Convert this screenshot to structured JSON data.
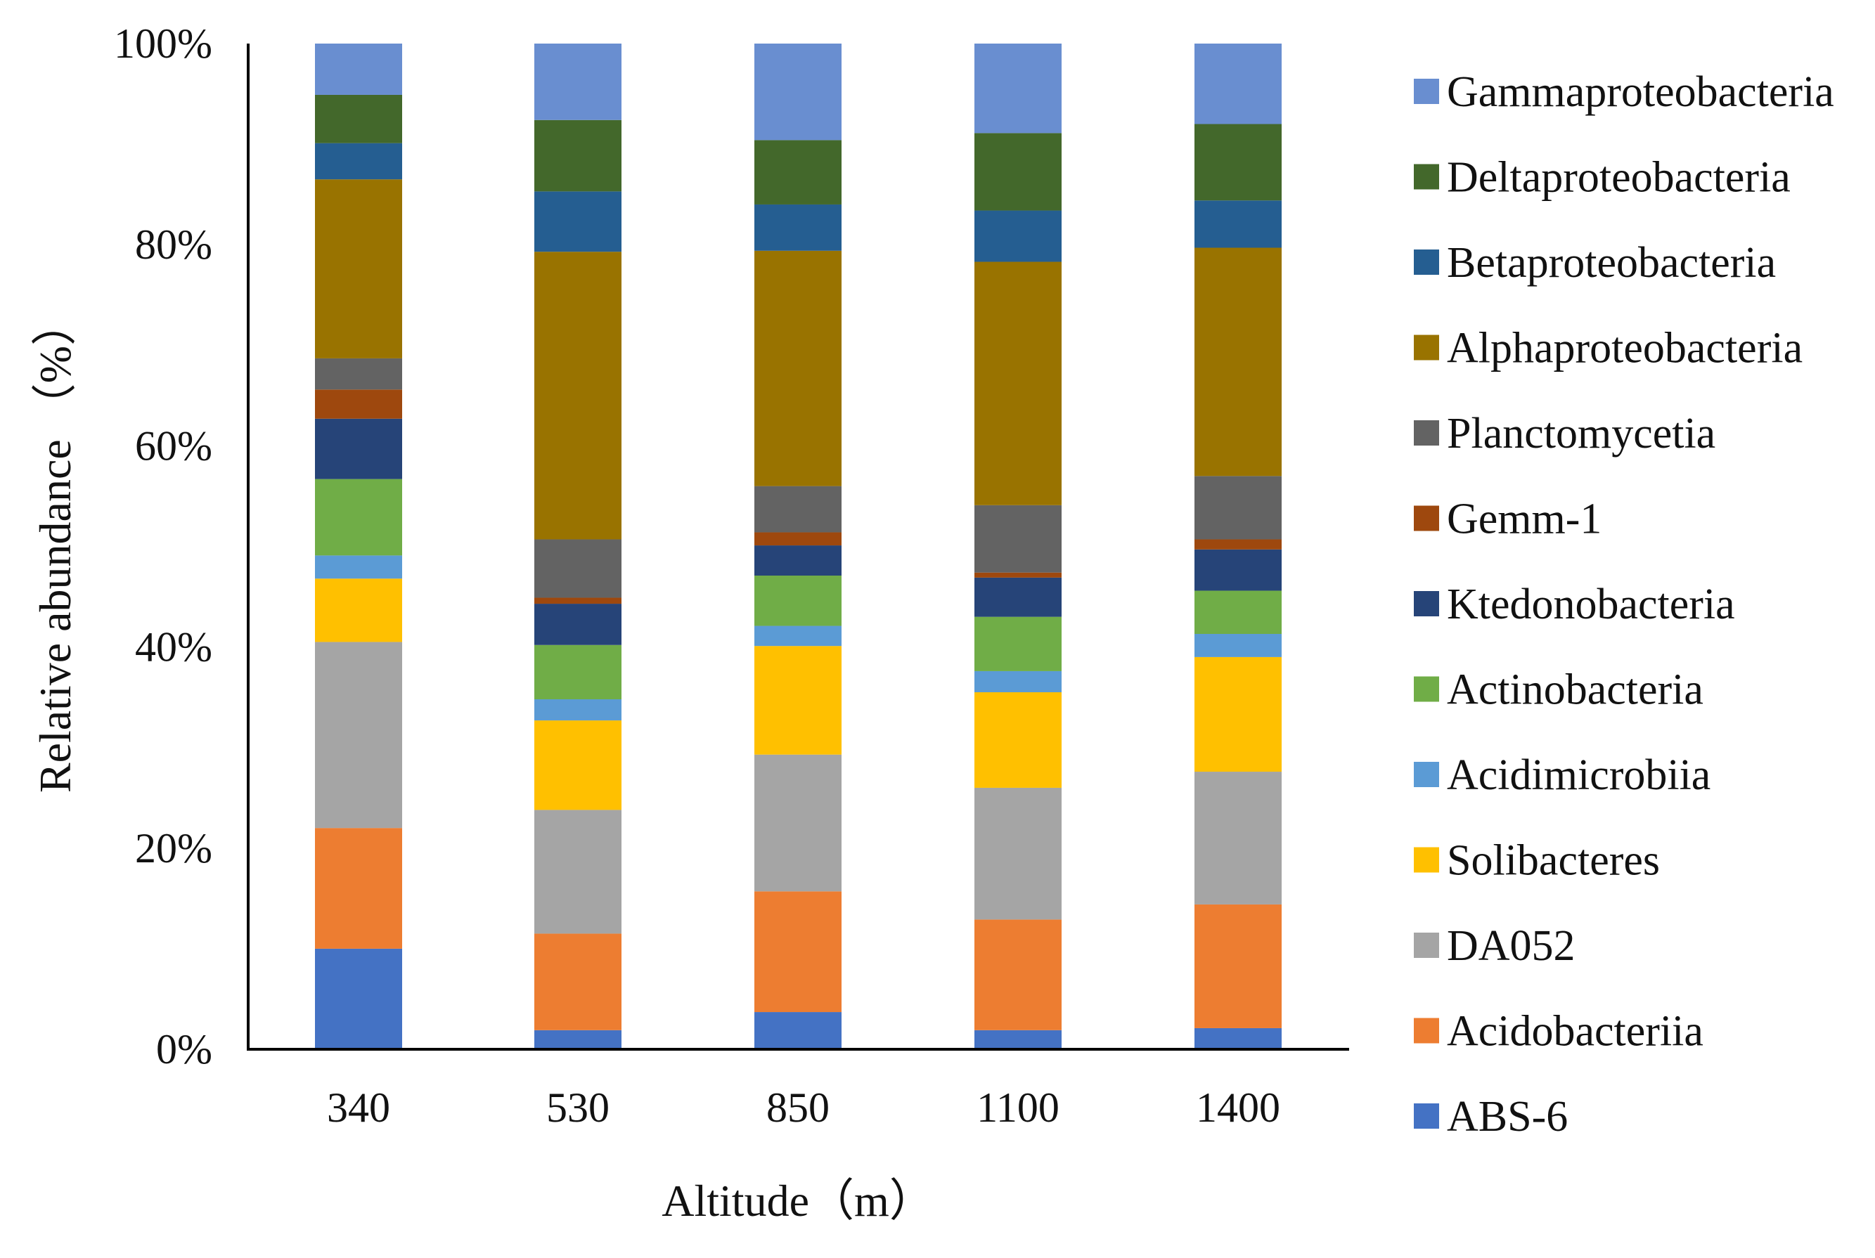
{
  "chart_data": {
    "type": "bar",
    "stacked": "percent",
    "title": "",
    "xlabel": "Altitude（m）",
    "ylabel": "Relative abundance （%）",
    "categories": [
      "340",
      "530",
      "850",
      "1100",
      "1400"
    ],
    "ylim": [
      0,
      100
    ],
    "yticks": [
      "0%",
      "20%",
      "40%",
      "60%",
      "80%",
      "100%"
    ],
    "ytick_values": [
      0,
      20,
      40,
      60,
      80,
      100
    ],
    "grid": false,
    "legend_position": "right",
    "series": [
      {
        "name": "ABS-6",
        "color": "#4472C4",
        "values": [
          10.0,
          1.9,
          3.7,
          1.9,
          2.1
        ]
      },
      {
        "name": "Acidobacteriia",
        "color": "#ED7D31",
        "values": [
          12.0,
          9.6,
          12.0,
          11.0,
          12.3
        ]
      },
      {
        "name": "DA052",
        "color": "#A5A5A5",
        "values": [
          18.5,
          12.3,
          13.6,
          13.1,
          13.2
        ]
      },
      {
        "name": "Solibacteres",
        "color": "#FFC000",
        "values": [
          6.3,
          8.9,
          10.8,
          9.5,
          11.4
        ]
      },
      {
        "name": "Acidimicrobiia",
        "color": "#5B9BD5",
        "values": [
          2.3,
          2.1,
          2.0,
          2.1,
          2.3
        ]
      },
      {
        "name": "Actinobacteria",
        "color": "#70AD47",
        "values": [
          7.6,
          5.4,
          5.0,
          5.4,
          4.3
        ]
      },
      {
        "name": "Ktedonobacteria",
        "color": "#264478",
        "values": [
          6.0,
          4.1,
          3.0,
          3.9,
          4.1
        ]
      },
      {
        "name": "Gemm-1",
        "color": "#9E480E",
        "values": [
          2.9,
          0.6,
          1.3,
          0.5,
          1.0
        ]
      },
      {
        "name": "Planctomycetia",
        "color": "#636363",
        "values": [
          3.1,
          5.8,
          4.6,
          6.7,
          6.3
        ]
      },
      {
        "name": "Alphaproteobacteria",
        "color": "#997300",
        "values": [
          17.8,
          28.6,
          23.4,
          24.2,
          22.7
        ]
      },
      {
        "name": "Betaproteobacteria",
        "color": "#255E91",
        "values": [
          3.6,
          6.0,
          4.6,
          5.1,
          4.7
        ]
      },
      {
        "name": "Deltaproteobacteria",
        "color": "#43682B",
        "values": [
          4.8,
          7.1,
          6.4,
          7.7,
          7.6
        ]
      },
      {
        "name": "Gammaproteobacteria",
        "color": "#698ED0",
        "values": [
          5.1,
          7.6,
          9.6,
          8.9,
          8.0
        ]
      }
    ]
  }
}
